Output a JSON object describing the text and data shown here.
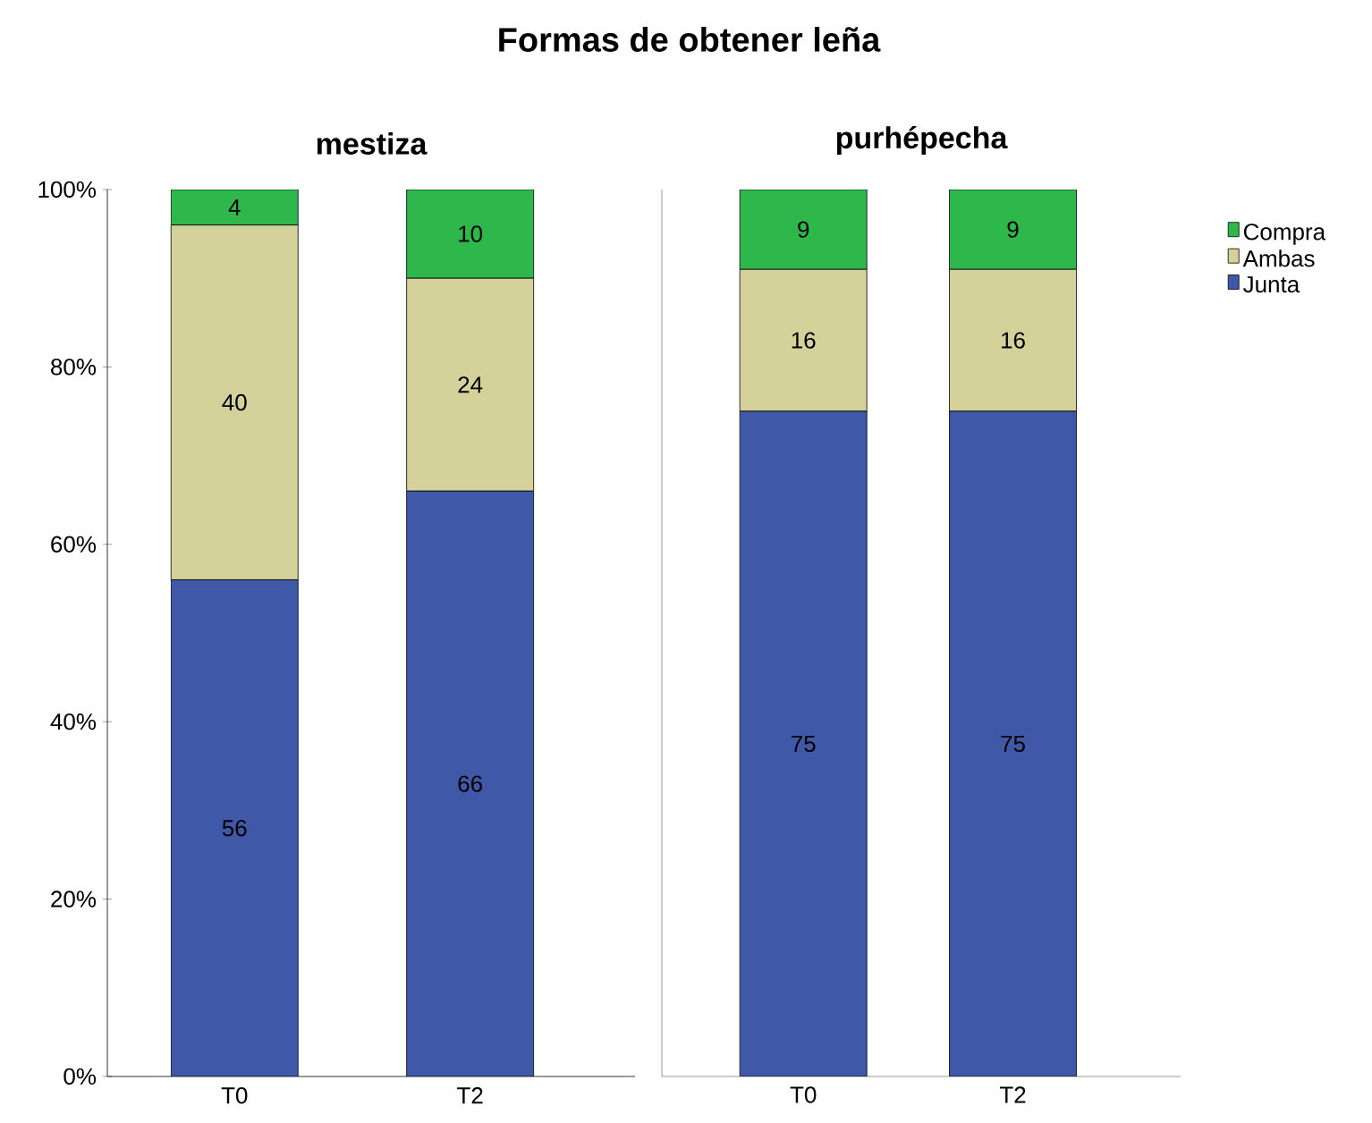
{
  "chart_data": [
    {
      "type": "bar",
      "title": "mestiza",
      "annotations": [
        "Formas de obtener leña"
      ],
      "stacked": true,
      "data_labels": true,
      "categories": [
        "T0",
        "T2"
      ],
      "ylim": [
        0,
        100
      ],
      "yticks": [
        {
          "value": 0,
          "label": "0%"
        },
        {
          "value": 20,
          "label": "20%"
        },
        {
          "value": 40,
          "label": "40%"
        },
        {
          "value": 60,
          "label": "60%"
        },
        {
          "value": 80,
          "label": "80%"
        },
        {
          "value": 100,
          "label": "100%"
        }
      ],
      "series": [
        {
          "color": "#3f58a8",
          "values": [
            56,
            66
          ]
        },
        {
          "color": "#d4d19a",
          "values": [
            40,
            24
          ]
        },
        {
          "color": "#2eb84b",
          "values": [
            4,
            10
          ]
        }
      ]
    },
    {
      "type": "bar",
      "title": "purhépecha",
      "stacked": true,
      "data_labels": true,
      "categories": [
        "T0",
        "T2"
      ],
      "ylim": [
        0,
        100
      ],
      "tick_labels": "x",
      "legend": "right",
      "series": [
        {
          "name": "Junta",
          "color": "#3f58a8",
          "values": [
            75,
            75
          ]
        },
        {
          "name": "Ambas",
          "color": "#d4d19a",
          "values": [
            16,
            16
          ]
        },
        {
          "name": "Compra",
          "color": "#2eb84b",
          "values": [
            9,
            9
          ]
        }
      ]
    }
  ]
}
